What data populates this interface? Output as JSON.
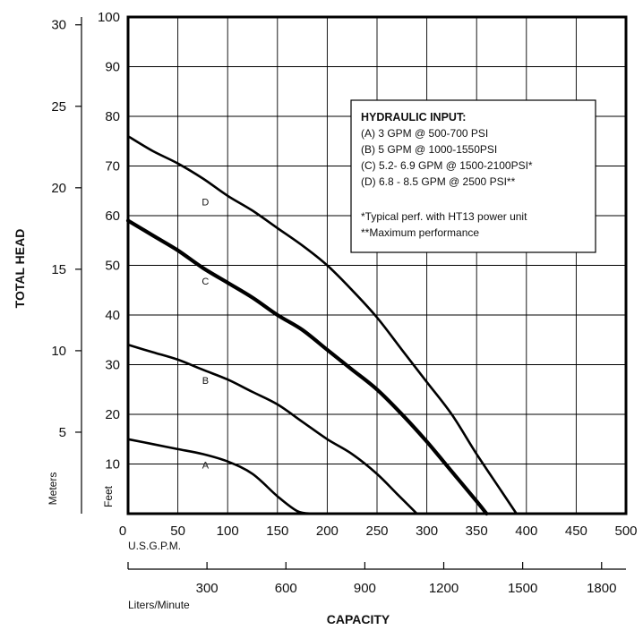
{
  "chart_data": {
    "type": "line",
    "ylabel": "TOTAL HEAD",
    "xlabel": "CAPACITY",
    "x_unit_primary": "U.S.G.P.M.",
    "x_unit_secondary": "Liters/Minute",
    "y_unit_feet": "Feet",
    "y_unit_meters": "Meters",
    "xlim": [
      0,
      500
    ],
    "ylim_feet": [
      0,
      100
    ],
    "x_ticks": [
      "0",
      "50",
      "100",
      "150",
      "200",
      "250",
      "300",
      "350",
      "400",
      "450",
      "500"
    ],
    "feet_ticks": [
      "10",
      "20",
      "30",
      "40",
      "50",
      "60",
      "70",
      "80",
      "90",
      "100"
    ],
    "meter_ticks": [
      "5",
      "10",
      "15",
      "20",
      "25",
      "30"
    ],
    "lpm_ticks": [
      "300",
      "600",
      "900",
      "1200",
      "1500",
      "1800"
    ],
    "grid": true,
    "legend_title": "HYDRAULIC INPUT:",
    "legend_lines": [
      "(A) 3 GPM @ 500-700 PSI",
      "(B) 5 GPM @ 1000-1550PSI",
      "(C) 5.2- 6.9 GPM @ 1500-2100PSI*",
      "(D) 6.8 - 8.5 GPM @ 2500 PSI**",
      "",
      "*Typical perf. with HT13 power unit",
      "**Maximum performance"
    ],
    "legend_position": "top-right",
    "series": [
      {
        "name": "A",
        "label_at": [
          75,
          10
        ],
        "bold": false,
        "x": [
          0,
          25,
          50,
          75,
          100,
          125,
          150,
          170,
          185
        ],
        "y": [
          15,
          14,
          13,
          12,
          10.5,
          8,
          3.5,
          0.5,
          0
        ]
      },
      {
        "name": "B",
        "label_at": [
          75,
          27
        ],
        "bold": false,
        "x": [
          0,
          25,
          50,
          75,
          100,
          125,
          150,
          175,
          200,
          225,
          250,
          270,
          290
        ],
        "y": [
          34,
          32.5,
          31,
          29,
          27,
          24.5,
          22,
          18.5,
          15,
          12,
          8,
          4,
          0
        ]
      },
      {
        "name": "C",
        "label_at": [
          75,
          47
        ],
        "bold": true,
        "x": [
          0,
          25,
          50,
          75,
          100,
          125,
          150,
          175,
          200,
          225,
          250,
          275,
          300,
          325,
          350,
          360
        ],
        "y": [
          59,
          56,
          53,
          49.5,
          46.5,
          43.5,
          40,
          37,
          33,
          29,
          25,
          20,
          14.5,
          8.5,
          2.5,
          0
        ]
      },
      {
        "name": "D",
        "label_at": [
          75,
          63
        ],
        "bold": false,
        "x": [
          0,
          25,
          50,
          75,
          100,
          125,
          150,
          175,
          200,
          225,
          250,
          275,
          300,
          325,
          350,
          375,
          390
        ],
        "y": [
          76,
          73,
          70.5,
          67.5,
          64,
          61,
          57.5,
          54,
          50,
          45,
          39.5,
          33,
          26.5,
          20,
          12,
          4.5,
          0
        ]
      }
    ]
  }
}
